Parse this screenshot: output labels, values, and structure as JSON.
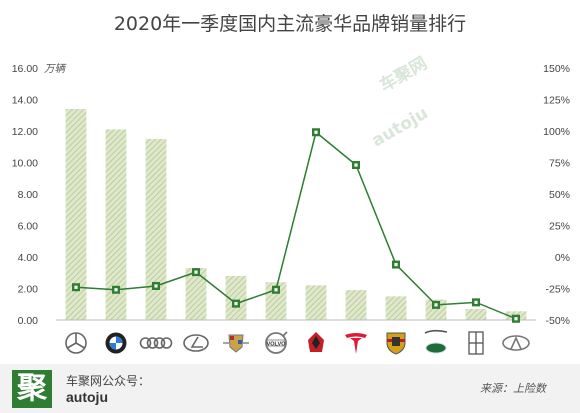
{
  "chart_data": {
    "type": "bar+line",
    "title": "2020年一季度国内主流豪华品牌销量排行",
    "y_left_unit": "万辆",
    "y_left_ticks": [
      "16.00",
      "14.00",
      "12.00",
      "10.00",
      "8.00",
      "6.00",
      "4.00",
      "2.00",
      "0.00"
    ],
    "y_left_range": [
      0,
      16
    ],
    "y_right_ticks": [
      "150%",
      "125%",
      "100%",
      "75%",
      "50%",
      "25%",
      "0%",
      "-25%",
      "-50%"
    ],
    "y_right_range": [
      -50,
      150
    ],
    "categories": [
      "mercedes-benz-logo",
      "bmw-logo",
      "audi-logo",
      "lexus-logo",
      "cadillac-logo",
      "volvo-logo",
      "hongqi-logo",
      "tesla-logo",
      "porsche-logo",
      "jaguar-land-rover-logo",
      "lincoln-logo",
      "infiniti-logo"
    ],
    "category_brand_marks": [
      "",
      "",
      "",
      "",
      "",
      "VOLVO",
      "",
      "",
      "",
      "",
      "",
      ""
    ],
    "bar_values": [
      13.4,
      12.1,
      11.5,
      3.3,
      2.8,
      2.4,
      2.2,
      1.9,
      1.5,
      1.3,
      0.7,
      0.55
    ],
    "line_values": [
      -24,
      -26,
      -23,
      -12,
      -37,
      -26,
      99,
      73,
      -6,
      -38,
      -36,
      -49
    ],
    "bar_color": "#c5d6a7",
    "line_color": "#2e7d32",
    "grid": false,
    "watermark": [
      "车聚网",
      "autoju"
    ]
  },
  "footer": {
    "logo_char": "聚",
    "account_label": "车聚网公众号：",
    "account_id": "autoju",
    "source": "来源：上险数"
  }
}
